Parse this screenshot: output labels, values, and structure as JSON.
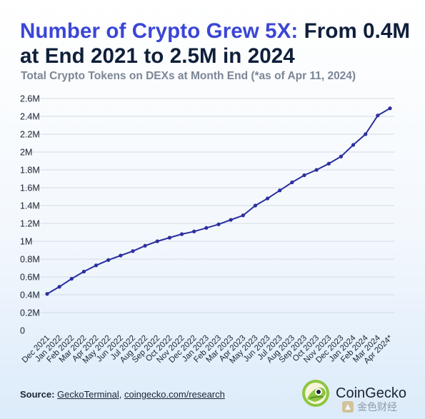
{
  "header": {
    "title_highlight": "Number of Crypto Grew 5X:",
    "title_rest": " From 0.4M at End 2021 to 2.5M in 2024",
    "subtitle": "Total Crypto Tokens on DEXs at Month End (*as of Apr 11, 2024)"
  },
  "footer": {
    "source_label": "Source:",
    "source_link1": "GeckoTerminal",
    "source_sep": ", ",
    "source_link2": "coingecko.com/research",
    "brand_name": "CoinGecko",
    "watermark_text": "金色财经"
  },
  "colors": {
    "line": "#2b2f9e",
    "title_highlight": "#3b46d6",
    "grid": "#d4dbe4"
  },
  "chart_data": {
    "type": "line",
    "title": "Number of Crypto Grew 5X: From 0.4M at End 2021 to 2.5M in 2024",
    "subtitle": "Total Crypto Tokens on DEXs at Month End (*as of Apr 11, 2024)",
    "xlabel": "",
    "ylabel": "",
    "ylim": [
      0,
      2.6
    ],
    "grid": true,
    "legend": "none",
    "y_ticks": [
      {
        "value": 0,
        "label": "0"
      },
      {
        "value": 0.2,
        "label": "0.2M"
      },
      {
        "value": 0.4,
        "label": "0.4M"
      },
      {
        "value": 0.6,
        "label": "0.6M"
      },
      {
        "value": 0.8,
        "label": "0.8M"
      },
      {
        "value": 1.0,
        "label": "1M"
      },
      {
        "value": 1.2,
        "label": "1.2M"
      },
      {
        "value": 1.4,
        "label": "1.4M"
      },
      {
        "value": 1.6,
        "label": "1.6M"
      },
      {
        "value": 1.8,
        "label": "1.8M"
      },
      {
        "value": 2.0,
        "label": "2M"
      },
      {
        "value": 2.2,
        "label": "2.2M"
      },
      {
        "value": 2.4,
        "label": "2.4M"
      },
      {
        "value": 2.6,
        "label": "2.6M"
      }
    ],
    "categories": [
      "Dec 2021",
      "Jan 2022",
      "Feb 2022",
      "Mar 2022",
      "Apr 2022",
      "May 2022",
      "Jun 2022",
      "Jul 2022",
      "Aug 2022",
      "Sep 2022",
      "Oct 2022",
      "Nov 2022",
      "Dec 2022",
      "Jan 2023",
      "Feb 2023",
      "Mar 2023",
      "Apr 2023",
      "May 2023",
      "Jun 2023",
      "Jul 2023",
      "Aug 2023",
      "Sep 2023",
      "Oct 2023",
      "Nov 2023",
      "Dec 2023",
      "Jan 2024",
      "Feb 2024",
      "Mar 2024",
      "Apr 2024*"
    ],
    "series": [
      {
        "values": [
          0.41,
          0.49,
          0.58,
          0.66,
          0.73,
          0.79,
          0.84,
          0.89,
          0.95,
          1.0,
          1.04,
          1.08,
          1.11,
          1.15,
          1.19,
          1.24,
          1.29,
          1.4,
          1.48,
          1.57,
          1.66,
          1.74,
          1.8,
          1.87,
          1.95,
          2.08,
          2.2,
          2.41,
          2.49
        ]
      }
    ]
  }
}
